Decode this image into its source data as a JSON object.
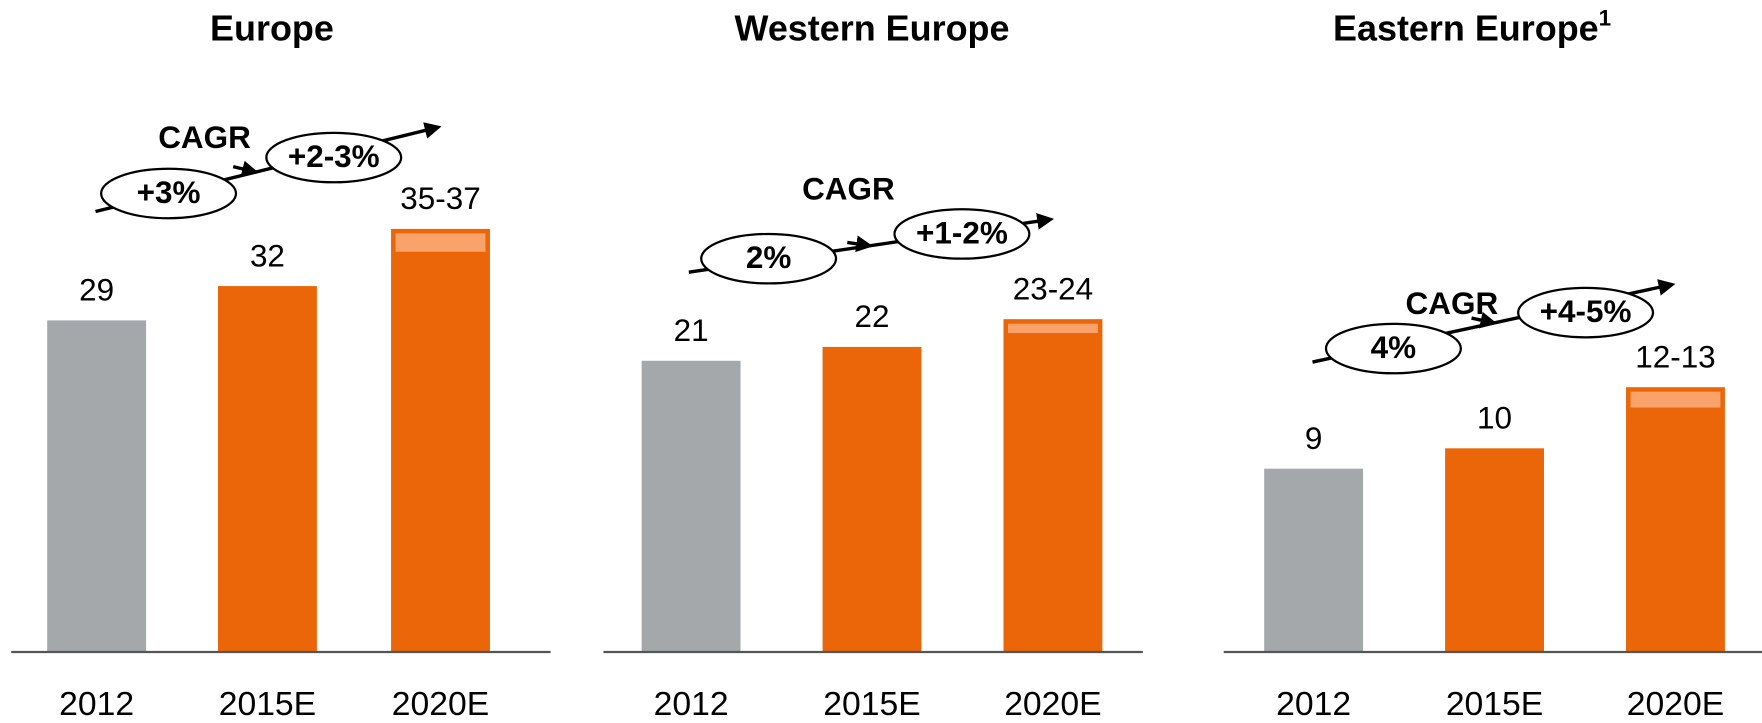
{
  "chart_data": [
    {
      "type": "bar",
      "title": "Europe",
      "categories": [
        "2012",
        "2015E",
        "2020E"
      ],
      "values": [
        29,
        32,
        35
      ],
      "upper": [
        null,
        null,
        37
      ],
      "value_labels": [
        "29",
        "32",
        "35-37"
      ],
      "colors": [
        "#a5a8aa",
        "#eb6608",
        "#eb6608"
      ],
      "range_color": "#f9a26a",
      "ylim": [
        0,
        57
      ],
      "cagr": {
        "label": "CAGR",
        "rates": [
          "+3%",
          "+2-3%"
        ]
      }
    },
    {
      "type": "bar",
      "title": "Western Europe",
      "categories": [
        "2012",
        "2015E",
        "2020E"
      ],
      "values": [
        21,
        22,
        23
      ],
      "upper": [
        null,
        null,
        24
      ],
      "value_labels": [
        "21",
        "22",
        "23-24"
      ],
      "colors": [
        "#a5a8aa",
        "#eb6608",
        "#eb6608"
      ],
      "range_color": "#f9a26a",
      "ylim": [
        0,
        47
      ],
      "cagr": {
        "label": "CAGR",
        "rates": [
          "2%",
          "+1-2%"
        ]
      }
    },
    {
      "type": "bar",
      "title": "Eastern Europe",
      "title_superscript": "1",
      "categories": [
        "2012",
        "2015E",
        "2020E"
      ],
      "values": [
        9,
        10,
        12
      ],
      "upper": [
        null,
        null,
        13
      ],
      "value_labels": [
        "9",
        "10",
        "12-13"
      ],
      "colors": [
        "#a5a8aa",
        "#eb6608",
        "#eb6608"
      ],
      "range_color": "#f9a26a",
      "ylim": [
        0,
        32
      ],
      "cagr": {
        "label": "CAGR",
        "rates": [
          "4%",
          "+4-5%"
        ]
      }
    }
  ]
}
